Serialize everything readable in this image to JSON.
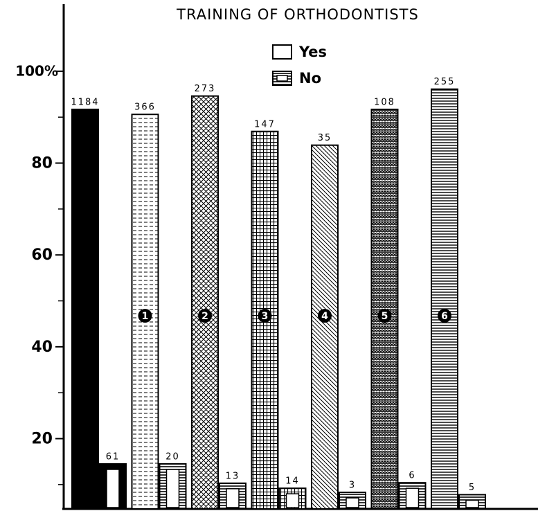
{
  "chart_data": {
    "type": "bar",
    "title": "TRAINING OF ORTHODONTISTS",
    "categories": [
      null,
      "1",
      "2",
      "3",
      "4",
      "5",
      "6"
    ],
    "series": [
      {
        "name": "Yes",
        "color": "#000000",
        "values": [
          91.7,
          90.6,
          94.6,
          86.9,
          83.9,
          91.7,
          96.1
        ],
        "value_labels": [
          "1184",
          "366",
          "273",
          "147",
          "35",
          "108",
          "255"
        ]
      },
      {
        "name": "No",
        "color": "#000000",
        "values": [
          14.5,
          14.5,
          10.3,
          9.2,
          8.3,
          10.4,
          7.8
        ],
        "value_labels": [
          "61",
          "20",
          "13",
          "14",
          "3",
          "6",
          "5"
        ]
      }
    ],
    "ylim": [
      4.7,
      114
    ],
    "yticks": [
      20,
      40,
      60,
      80,
      {
        "value": 100,
        "label": "100%"
      }
    ],
    "yminorticks": [
      10,
      30,
      50,
      70,
      90
    ],
    "grid": false
  }
}
